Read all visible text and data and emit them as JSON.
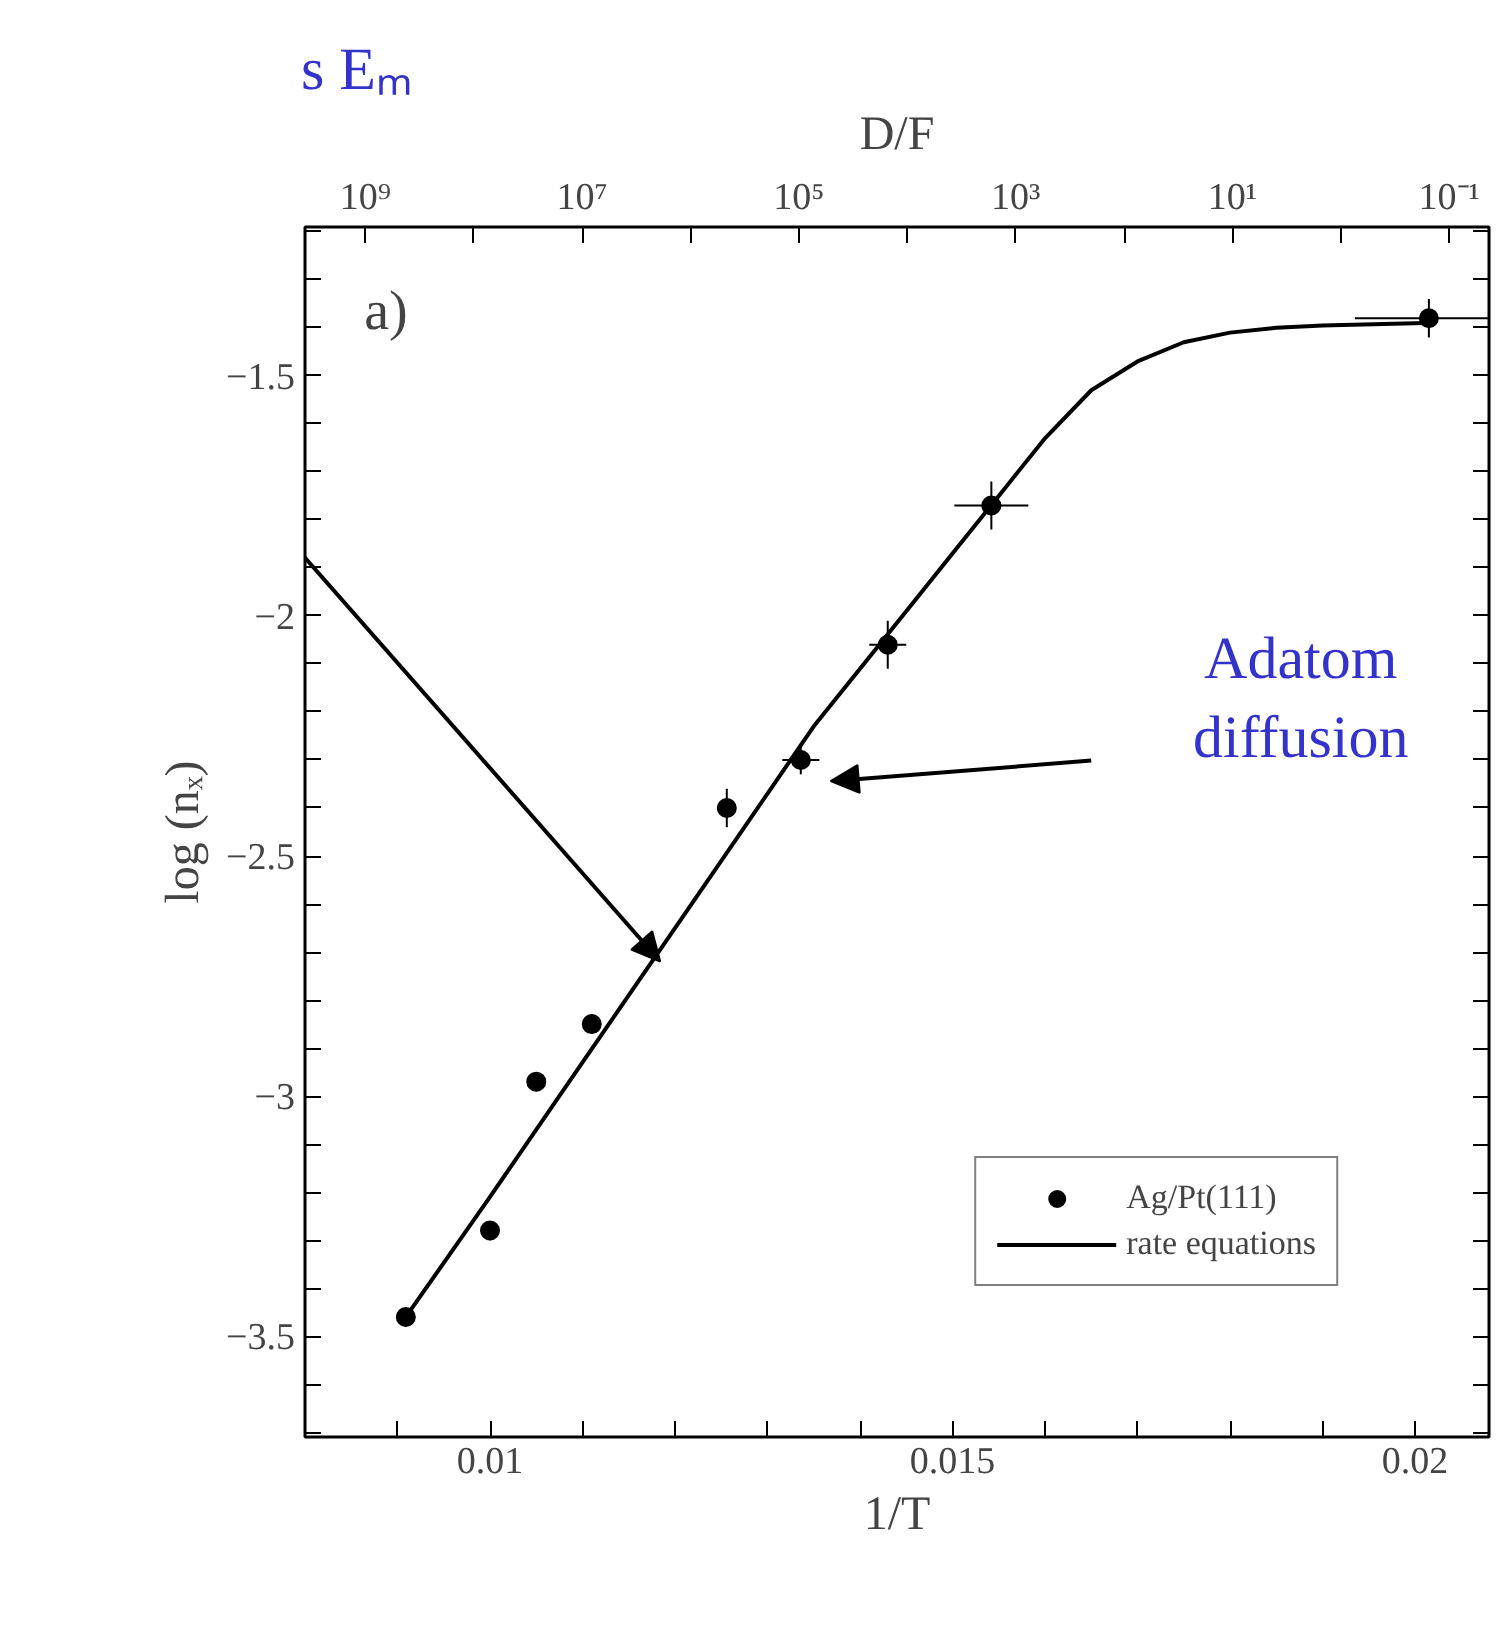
{
  "chart_data": {
    "type": "scatter",
    "xlabel": "1/T",
    "ylabel": "log (nₓ)",
    "x2label": "D/F",
    "xlim": [
      0.008,
      0.0208
    ],
    "ylim": [
      -3.71,
      -1.19
    ],
    "xticks": [
      {
        "value": 0.008,
        "label": null
      },
      {
        "value": 0.009,
        "label": null
      },
      0.01,
      {
        "value": 0.011,
        "label": null
      },
      {
        "value": 0.012,
        "label": null
      },
      {
        "value": 0.013,
        "label": null
      },
      {
        "value": 0.014,
        "label": null
      },
      0.015,
      {
        "value": 0.016,
        "label": null
      },
      {
        "value": 0.017,
        "label": null
      },
      {
        "value": 0.018,
        "label": null
      },
      {
        "value": 0.019,
        "label": null
      },
      0.02
    ],
    "yticks": [
      {
        "value": -3.7,
        "label": null
      },
      {
        "value": -3.6,
        "label": null
      },
      -3.5,
      {
        "value": -3.4,
        "label": null
      },
      {
        "value": -3.3,
        "label": null
      },
      {
        "value": -3.2,
        "label": null
      },
      {
        "value": -3.1,
        "label": null
      },
      -3.0,
      {
        "value": -2.9,
        "label": null
      },
      {
        "value": -2.8,
        "label": null
      },
      {
        "value": -2.7,
        "label": null
      },
      {
        "value": -2.6,
        "label": null
      },
      -2.5,
      {
        "value": -2.4,
        "label": null
      },
      {
        "value": -2.3,
        "label": null
      },
      {
        "value": -2.2,
        "label": null
      },
      {
        "value": -2.1,
        "label": null
      },
      -2.0,
      {
        "value": -1.9,
        "label": null
      },
      {
        "value": -1.8,
        "label": null
      },
      {
        "value": -1.7,
        "label": null
      },
      {
        "value": -1.6,
        "label": null
      },
      -1.5,
      {
        "value": -1.4,
        "label": null
      },
      {
        "value": -1.3,
        "label": null
      },
      {
        "value": -1.2,
        "label": null
      }
    ],
    "log": "x2",
    "x2lim": [
      3600000000.0,
      0.043
    ],
    "x2ticks": [
      {
        "value": 1000000000.0,
        "label": "10⁹"
      },
      {
        "value": 100000000.0,
        "label": null
      },
      {
        "value": 10000000.0,
        "label": "10⁷"
      },
      {
        "value": 1000000.0,
        "label": null
      },
      {
        "value": 100000.0,
        "label": "10⁵"
      },
      {
        "value": 10000.0,
        "label": null
      },
      {
        "value": 1000.0,
        "label": "10³"
      },
      {
        "value": 100,
        "label": null
      },
      {
        "value": 10,
        "label": "10¹"
      },
      {
        "value": 1,
        "label": null
      },
      {
        "value": 0.1,
        "label": "10⁻¹"
      }
    ],
    "grid": false,
    "legend": "bottom right",
    "series": [
      {
        "name": "Ag/Pt(111)",
        "type": "scatter",
        "marker": "circle",
        "color": "#000000",
        "x": [
          0.00909,
          0.01,
          0.0105,
          0.0111,
          0.01256,
          0.01336,
          0.0143,
          0.01542,
          0.02015
        ],
        "values": [
          -3.46,
          -3.28,
          -2.97,
          -2.85,
          -2.4,
          -2.3,
          -2.06,
          -1.77,
          -1.38
        ],
        "errors": [
          0.02,
          0.02,
          0.02,
          0.02,
          0.04,
          0.03,
          0.05,
          0.05,
          0.04
        ],
        "xerrors": [
          0.0001,
          0.0001,
          0.0001,
          0.0001,
          0.0001,
          0.0002,
          0.0002,
          0.0004,
          0.0008
        ]
      },
      {
        "name": "rate equations",
        "type": "line",
        "marker": "none",
        "line_style": "solid",
        "color": "#000000",
        "x": [
          0.00909,
          0.01,
          0.011,
          0.012,
          0.013,
          0.0135,
          0.014,
          0.0145,
          0.015,
          0.0155,
          0.016,
          0.0165,
          0.017,
          0.0175,
          0.018,
          0.0185,
          0.019,
          0.0201
        ],
        "values": [
          -3.46,
          -3.21,
          -2.93,
          -2.65,
          -2.37,
          -2.23,
          -2.11,
          -1.99,
          -1.87,
          -1.75,
          -1.63,
          -1.53,
          -1.47,
          -1.43,
          -1.41,
          -1.4,
          -1.395,
          -1.39
        ]
      }
    ],
    "annotations": [
      "a)",
      "s Eₘ",
      "Adatom\ndiffusion"
    ]
  }
}
